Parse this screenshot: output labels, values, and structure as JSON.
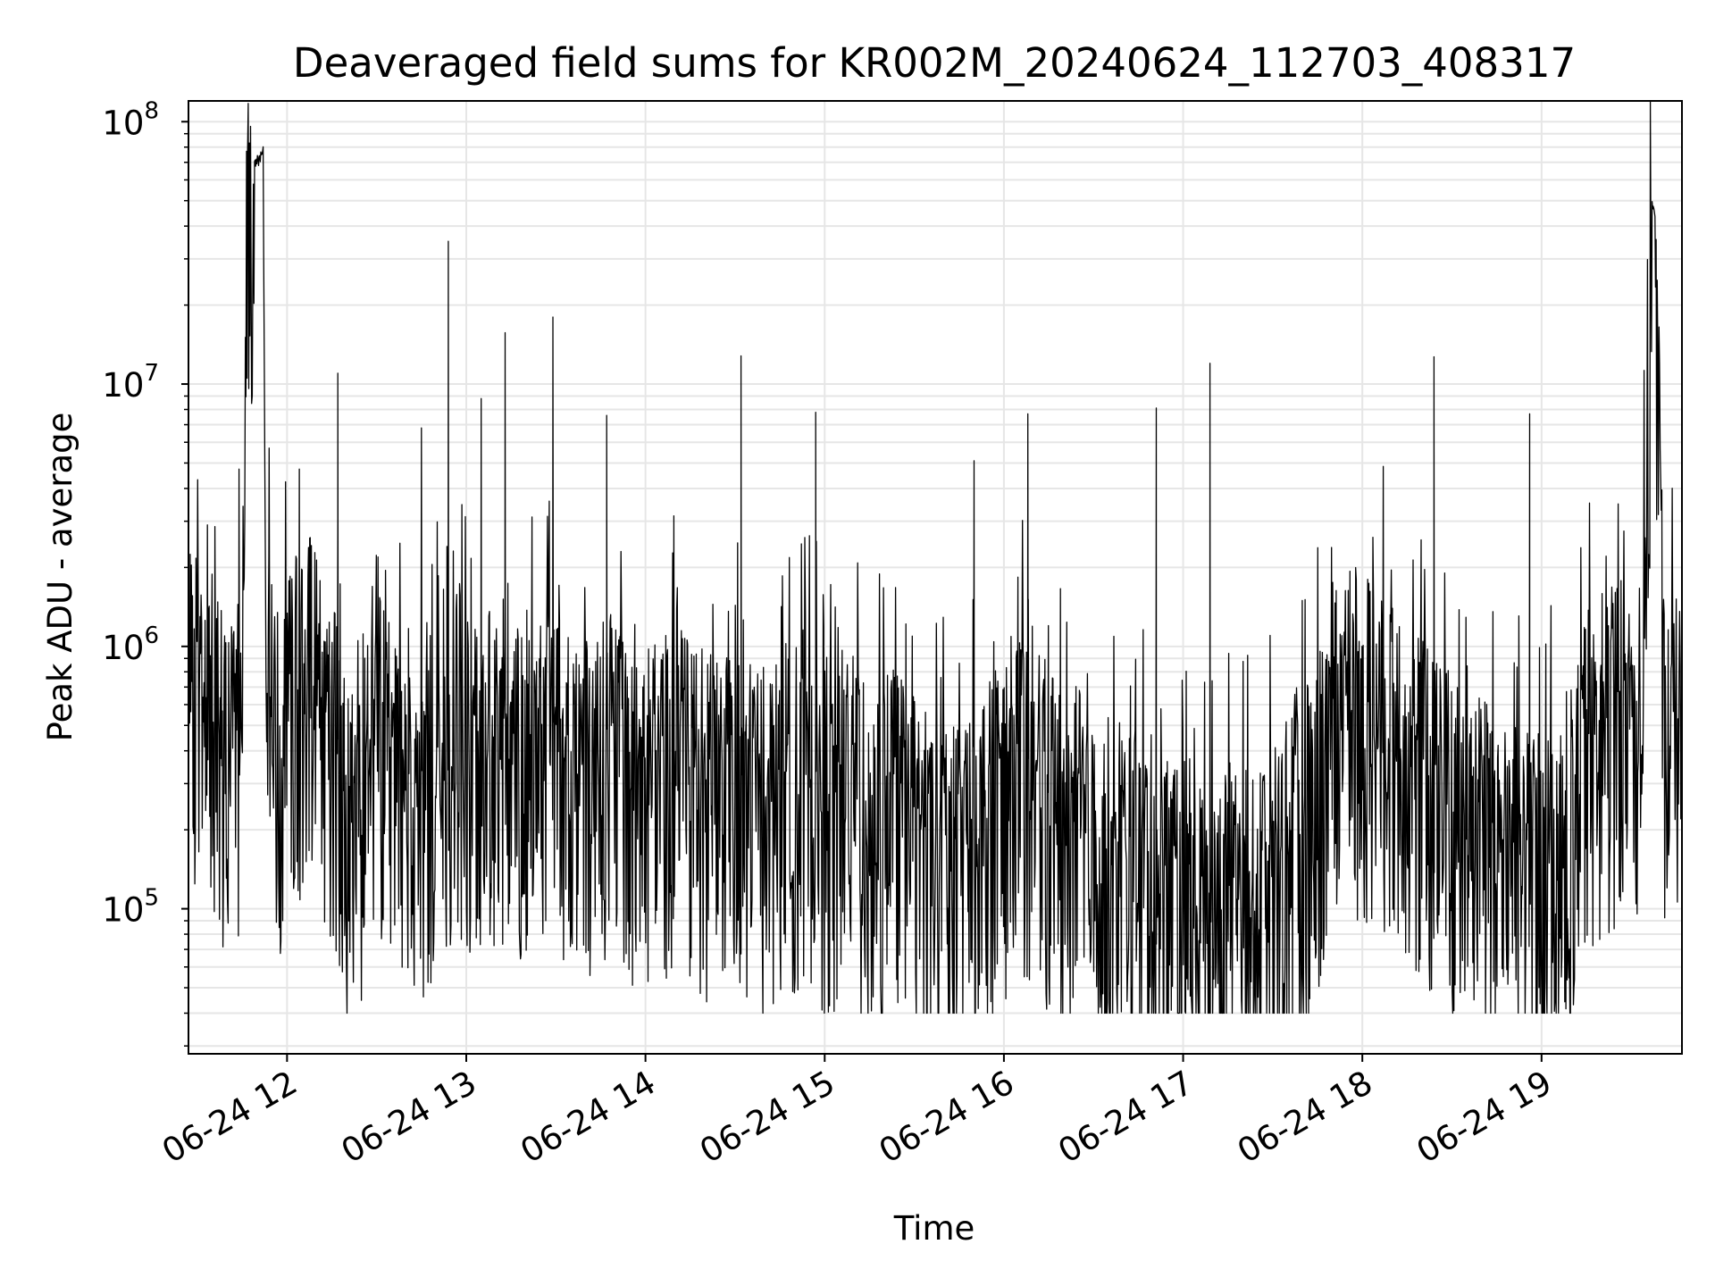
{
  "chart_data": {
    "type": "line",
    "title": "Deaveraged field sums for KR002M_20240624_112703_408317",
    "xlabel": "Time",
    "ylabel": "Peak ADU - average",
    "yscale": "log",
    "ylim": [
      28000,
      120000000
    ],
    "xlim": [
      "2024-06-24 11:27",
      "2024-06-24 19:47"
    ],
    "grid": true,
    "line_color": "#000000",
    "x_ticks": [
      "06-24 12",
      "06-24 13",
      "06-24 14",
      "06-24 15",
      "06-24 16",
      "06-24 17",
      "06-24 18",
      "06-24 19"
    ],
    "y_ticks": [
      {
        "base": "10",
        "exp": "5"
      },
      {
        "base": "10",
        "exp": "6"
      },
      {
        "base": "10",
        "exp": "7"
      },
      {
        "base": "10",
        "exp": "8"
      }
    ],
    "series": [
      {
        "name": "",
        "x": [
          "2024-06-24 11:27",
          "2024-06-24 11:29",
          "2024-06-24 11:33",
          "2024-06-24 11:36",
          "2024-06-24 11:39",
          "2024-06-24 11:41",
          "2024-06-24 11:43",
          "2024-06-24 11:45",
          "2024-06-24 11:47",
          "2024-06-24 11:49",
          "2024-06-24 11:51",
          "2024-06-24 11:52",
          "2024-06-24 11:53",
          "2024-06-24 11:55",
          "2024-06-24 11:58",
          "2024-06-24 12:01",
          "2024-06-24 12:04",
          "2024-06-24 12:07",
          "2024-06-24 12:12",
          "2024-06-24 12:16",
          "2024-06-24 12:19",
          "2024-06-24 12:22",
          "2024-06-24 12:27",
          "2024-06-24 12:32",
          "2024-06-24 12:37",
          "2024-06-24 12:42",
          "2024-06-24 12:47",
          "2024-06-24 12:52",
          "2024-06-24 12:57",
          "2024-06-24 13:02",
          "2024-06-24 13:07",
          "2024-06-24 13:12",
          "2024-06-24 13:19",
          "2024-06-24 13:27",
          "2024-06-24 13:33",
          "2024-06-24 13:41",
          "2024-06-24 13:48",
          "2024-06-24 13:56",
          "2024-06-24 14:04",
          "2024-06-24 14:12",
          "2024-06-24 14:20",
          "2024-06-24 14:28",
          "2024-06-24 14:36",
          "2024-06-24 14:44",
          "2024-06-24 14:52",
          "2024-06-24 15:00",
          "2024-06-24 15:08",
          "2024-06-24 15:16",
          "2024-06-24 15:24",
          "2024-06-24 15:32",
          "2024-06-24 15:40",
          "2024-06-24 15:48",
          "2024-06-24 15:56",
          "2024-06-24 16:04",
          "2024-06-24 16:12",
          "2024-06-24 16:20",
          "2024-06-24 16:28",
          "2024-06-24 16:36",
          "2024-06-24 16:44",
          "2024-06-24 16:52",
          "2024-06-24 17:00",
          "2024-06-24 17:08",
          "2024-06-24 17:16",
          "2024-06-24 17:24",
          "2024-06-24 17:32",
          "2024-06-24 17:40",
          "2024-06-24 17:48",
          "2024-06-24 17:56",
          "2024-06-24 18:04",
          "2024-06-24 18:12",
          "2024-06-24 18:20",
          "2024-06-24 18:28",
          "2024-06-24 18:36",
          "2024-06-24 18:44",
          "2024-06-24 18:52",
          "2024-06-24 19:00",
          "2024-06-24 19:08",
          "2024-06-24 19:16",
          "2024-06-24 19:24",
          "2024-06-24 19:32",
          "2024-06-24 19:35",
          "2024-06-24 19:37",
          "2024-06-24 19:38",
          "2024-06-24 19:41",
          "2024-06-24 19:44",
          "2024-06-24 19:47"
        ],
        "y": [
          700000,
          900000,
          550000,
          650000,
          500000,
          420000,
          480000,
          900000,
          60000000,
          68000000,
          75000000,
          80000000,
          650000,
          700000,
          500000,
          900000,
          800000,
          1000000,
          650000,
          500000,
          350000,
          230000,
          420000,
          600000,
          330000,
          280000,
          380000,
          450000,
          600000,
          420000,
          600000,
          380000,
          480000,
          550000,
          450000,
          400000,
          500000,
          350000,
          380000,
          420000,
          350000,
          350000,
          300000,
          300000,
          400000,
          300000,
          350000,
          250000,
          300000,
          220000,
          180000,
          200000,
          300000,
          400000,
          350000,
          220000,
          200000,
          140000,
          180000,
          120000,
          150000,
          100000,
          130000,
          120000,
          170000,
          220000,
          500000,
          750000,
          650000,
          600000,
          400000,
          300000,
          260000,
          220000,
          180000,
          170000,
          200000,
          550000,
          650000,
          620000,
          2000000,
          50000000,
          45000000,
          600000,
          550000,
          700000
        ]
      }
    ],
    "spikes": [
      {
        "x": "2024-06-24 11:54",
        "y": 5700000
      },
      {
        "x": "2024-06-24 12:17",
        "y": 11000000
      },
      {
        "x": "2024-06-24 12:45",
        "y": 6800000
      },
      {
        "x": "2024-06-24 12:54",
        "y": 35000000
      },
      {
        "x": "2024-06-24 13:05",
        "y": 8800000
      },
      {
        "x": "2024-06-24 13:13",
        "y": 15700000
      },
      {
        "x": "2024-06-24 13:29",
        "y": 18000000
      },
      {
        "x": "2024-06-24 13:47",
        "y": 7600000
      },
      {
        "x": "2024-06-24 14:32",
        "y": 12800000
      },
      {
        "x": "2024-06-24 14:57",
        "y": 7800000
      },
      {
        "x": "2024-06-24 15:50",
        "y": 5100000
      },
      {
        "x": "2024-06-24 16:08",
        "y": 7700000
      },
      {
        "x": "2024-06-24 16:51",
        "y": 8100000
      },
      {
        "x": "2024-06-24 17:09",
        "y": 12000000
      },
      {
        "x": "2024-06-24 18:24",
        "y": 12700000
      },
      {
        "x": "2024-06-24 18:56",
        "y": 7700000
      }
    ]
  }
}
